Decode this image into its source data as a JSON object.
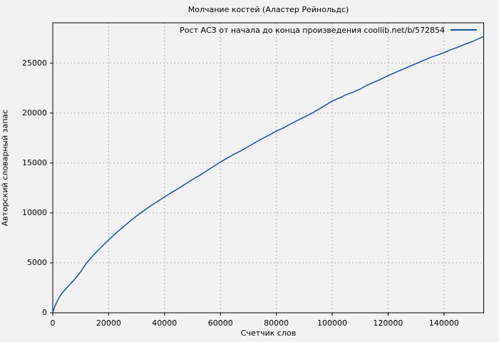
{
  "title": "Молчание костей (Аластер Рейнольдс)",
  "legend": {
    "label": "Рост АСЗ от начала до конца произведения coollib.net/b/572854"
  },
  "colors": {
    "background": "#f2f2f2",
    "line": "#1b4ea0",
    "grid": "#b0b0b0",
    "border": "#000000",
    "text": "#000000"
  },
  "chart_data": {
    "type": "line",
    "title": "Молчание костей (Аластер Рейнольдс)",
    "xlabel": "Счетчик слов",
    "ylabel": "Авторский словарный запас",
    "xlim": [
      0,
      154200
    ],
    "ylim": [
      0,
      29040
    ],
    "x_ticks": [
      0,
      20000,
      40000,
      60000,
      80000,
      100000,
      120000,
      140000
    ],
    "y_ticks": [
      0,
      5000,
      10000,
      15000,
      20000,
      25000
    ],
    "grid": true,
    "legend_position": "top-right-inside",
    "series": [
      {
        "name": "Рост АСЗ от начала до конца произведения coollib.net/b/572854",
        "color": "#1b4ea0",
        "points": [
          [
            0,
            0
          ],
          [
            500,
            450
          ],
          [
            1000,
            800
          ],
          [
            2000,
            1400
          ],
          [
            3000,
            1850
          ],
          [
            4000,
            2200
          ],
          [
            5000,
            2500
          ],
          [
            6000,
            2800
          ],
          [
            7000,
            3100
          ],
          [
            8000,
            3400
          ],
          [
            9000,
            3750
          ],
          [
            10000,
            4100
          ],
          [
            12000,
            4950
          ],
          [
            14000,
            5600
          ],
          [
            16000,
            6200
          ],
          [
            18000,
            6750
          ],
          [
            20000,
            7300
          ],
          [
            22500,
            7950
          ],
          [
            25000,
            8550
          ],
          [
            27500,
            9150
          ],
          [
            30000,
            9700
          ],
          [
            32500,
            10200
          ],
          [
            35000,
            10700
          ],
          [
            37500,
            11150
          ],
          [
            40000,
            11600
          ],
          [
            42500,
            12050
          ],
          [
            45000,
            12450
          ],
          [
            47500,
            12900
          ],
          [
            50000,
            13350
          ],
          [
            52500,
            13750
          ],
          [
            55000,
            14200
          ],
          [
            57500,
            14650
          ],
          [
            60000,
            15100
          ],
          [
            62500,
            15500
          ],
          [
            65000,
            15900
          ],
          [
            67500,
            16250
          ],
          [
            70000,
            16650
          ],
          [
            72500,
            17050
          ],
          [
            75000,
            17450
          ],
          [
            77500,
            17800
          ],
          [
            80000,
            18200
          ],
          [
            82500,
            18500
          ],
          [
            85000,
            18900
          ],
          [
            87500,
            19250
          ],
          [
            90000,
            19600
          ],
          [
            92500,
            19950
          ],
          [
            95000,
            20350
          ],
          [
            97500,
            20780
          ],
          [
            100000,
            21200
          ],
          [
            102500,
            21500
          ],
          [
            105000,
            21850
          ],
          [
            107500,
            22100
          ],
          [
            110000,
            22400
          ],
          [
            112500,
            22800
          ],
          [
            115000,
            23100
          ],
          [
            117500,
            23400
          ],
          [
            120000,
            23750
          ],
          [
            122500,
            24050
          ],
          [
            125000,
            24350
          ],
          [
            127500,
            24650
          ],
          [
            130000,
            24950
          ],
          [
            132500,
            25250
          ],
          [
            135000,
            25550
          ],
          [
            137500,
            25800
          ],
          [
            140000,
            26050
          ],
          [
            142500,
            26350
          ],
          [
            145000,
            26600
          ],
          [
            147500,
            26900
          ],
          [
            150000,
            27150
          ],
          [
            152000,
            27400
          ],
          [
            154000,
            27650
          ]
        ]
      }
    ]
  }
}
